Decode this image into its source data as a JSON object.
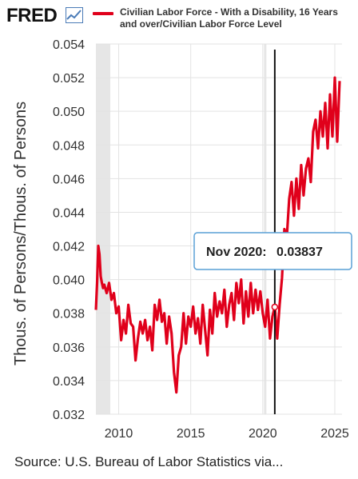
{
  "header": {
    "logo_text": "FRED",
    "logo_icon": "trend-line-icon",
    "legend_label": "Civilian Labor Force - With a Disability, 16 Years and over/Civilian Labor Force Level",
    "series_color": "#e0001b"
  },
  "tooltip": {
    "date": "Nov 2020:",
    "value": "0.03837"
  },
  "footer": {
    "source": "Source: U.S. Bureau of Labor Statistics via..."
  },
  "chart_data": {
    "type": "line",
    "ylabel": "Thous. of Persons/Thous. of Persons",
    "xlabel": "",
    "y_ticks": [
      "0.032",
      "0.034",
      "0.036",
      "0.038",
      "0.040",
      "0.042",
      "0.044",
      "0.046",
      "0.048",
      "0.050",
      "0.052",
      "0.054"
    ],
    "ylim": [
      0.032,
      0.054
    ],
    "x_ticks": [
      "2010",
      "2015",
      "2020",
      "2025"
    ],
    "xlim": [
      "2008-06",
      "2025-07"
    ],
    "grid": true,
    "recession_shading": [
      [
        "2008-01",
        "2009-06"
      ],
      [
        "2020-02",
        "2020-04"
      ]
    ],
    "crosshair": "2020-11",
    "series": [
      {
        "x": [
          "2008-06",
          "2008-07",
          "2008-08",
          "2008-09",
          "2008-10",
          "2008-11",
          "2008-12",
          "2009-01",
          "2009-03",
          "2009-05",
          "2009-07",
          "2009-09",
          "2009-11",
          "2010-01",
          "2010-03",
          "2010-05",
          "2010-07",
          "2010-09",
          "2010-11",
          "2011-01",
          "2011-03",
          "2011-05",
          "2011-07",
          "2011-09",
          "2011-11",
          "2012-01",
          "2012-03",
          "2012-05",
          "2012-07",
          "2012-09",
          "2012-11",
          "2013-01",
          "2013-03",
          "2013-05",
          "2013-07",
          "2013-09",
          "2013-11",
          "2014-01",
          "2014-03",
          "2014-05",
          "2014-07",
          "2014-09",
          "2014-11",
          "2015-01",
          "2015-03",
          "2015-05",
          "2015-07",
          "2015-09",
          "2015-11",
          "2016-01",
          "2016-03",
          "2016-05",
          "2016-07",
          "2016-09",
          "2016-11",
          "2017-01",
          "2017-03",
          "2017-05",
          "2017-07",
          "2017-09",
          "2017-11",
          "2018-01",
          "2018-03",
          "2018-05",
          "2018-07",
          "2018-09",
          "2018-11",
          "2019-01",
          "2019-03",
          "2019-05",
          "2019-07",
          "2019-09",
          "2019-11",
          "2020-01",
          "2020-03",
          "2020-05",
          "2020-07",
          "2020-09",
          "2020-11",
          "2021-01",
          "2021-03",
          "2021-05",
          "2021-07",
          "2021-09",
          "2021-11",
          "2022-01",
          "2022-03",
          "2022-05",
          "2022-07",
          "2022-09",
          "2022-11",
          "2023-01",
          "2023-03",
          "2023-05",
          "2023-07",
          "2023-09",
          "2023-11",
          "2024-01",
          "2024-03",
          "2024-05",
          "2024-07",
          "2024-09",
          "2024-11",
          "2025-01",
          "2025-03",
          "2025-05"
        ],
        "values": [
          0.0382,
          0.0398,
          0.042,
          0.0415,
          0.0402,
          0.0398,
          0.0395,
          0.0397,
          0.0392,
          0.0398,
          0.0388,
          0.0392,
          0.038,
          0.0384,
          0.0364,
          0.0376,
          0.0368,
          0.0385,
          0.0374,
          0.0372,
          0.0352,
          0.0365,
          0.0375,
          0.0368,
          0.0376,
          0.0364,
          0.0372,
          0.0358,
          0.0385,
          0.0376,
          0.0388,
          0.0375,
          0.038,
          0.0362,
          0.0378,
          0.0368,
          0.0345,
          0.0333,
          0.0355,
          0.036,
          0.038,
          0.0362,
          0.0378,
          0.0372,
          0.0384,
          0.0368,
          0.0377,
          0.0362,
          0.0385,
          0.037,
          0.0355,
          0.0382,
          0.0368,
          0.0392,
          0.0378,
          0.0387,
          0.038,
          0.0394,
          0.0372,
          0.0385,
          0.0392,
          0.0376,
          0.0398,
          0.0386,
          0.04,
          0.0374,
          0.0393,
          0.0378,
          0.0398,
          0.038,
          0.0394,
          0.0382,
          0.0393,
          0.038,
          0.0372,
          0.0388,
          0.0365,
          0.0378,
          0.0384,
          0.0365,
          0.0385,
          0.0401,
          0.043,
          0.0425,
          0.0448,
          0.0458,
          0.0438,
          0.046,
          0.0442,
          0.0468,
          0.045,
          0.0466,
          0.0472,
          0.0458,
          0.0488,
          0.0495,
          0.0478,
          0.05,
          0.0485,
          0.0505,
          0.0478,
          0.051,
          0.0485,
          0.052,
          0.0482,
          0.0518
        ]
      }
    ]
  }
}
